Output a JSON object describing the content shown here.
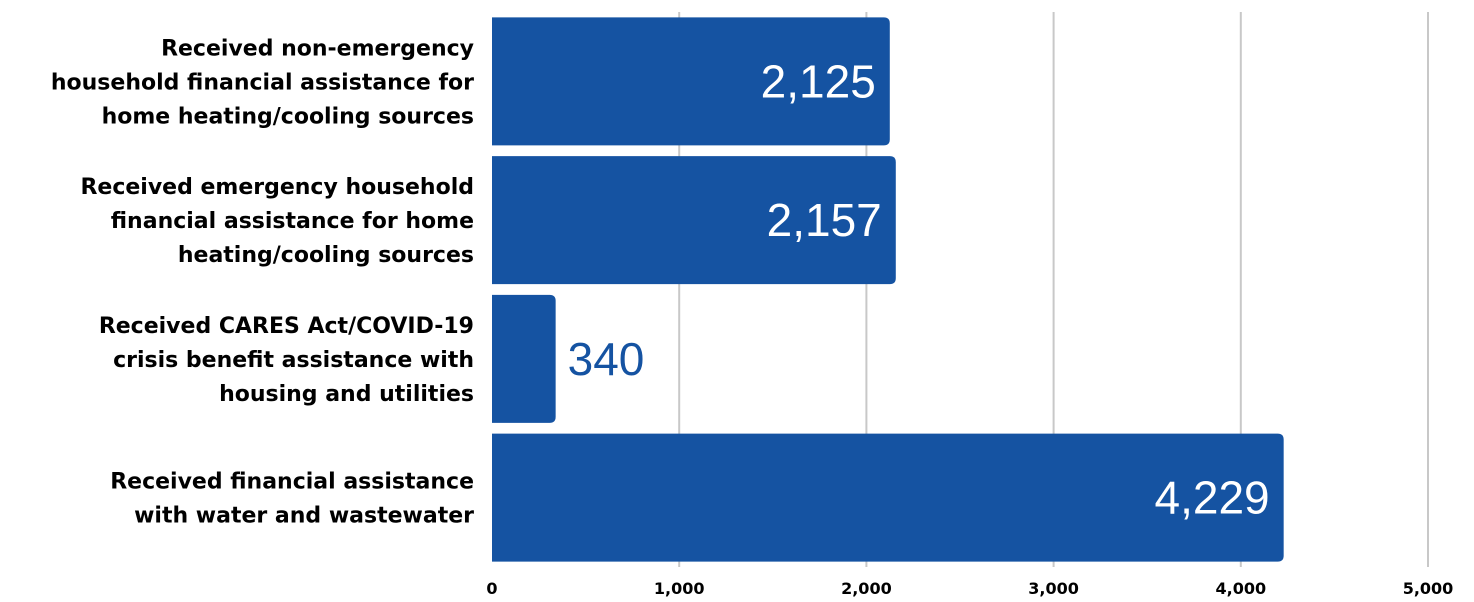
{
  "chart_data": {
    "type": "bar",
    "orientation": "horizontal",
    "categories": [
      [
        "Received non-emergency",
        "household financial assistance for",
        "home heating/cooling sources"
      ],
      [
        "Received emergency household",
        "financial assistance for home",
        "heating/cooling sources"
      ],
      [
        "Received CARES Act/COVID-19",
        "crisis benefit assistance with",
        "housing and utilities"
      ],
      [
        "Received financial assistance",
        "with water and wastewater"
      ]
    ],
    "values": [
      2125,
      2157,
      340,
      4229
    ],
    "value_labels": [
      "2,125",
      "2,157",
      "340",
      "4,229"
    ],
    "xlim": [
      0,
      5000
    ],
    "xticks": [
      0,
      1000,
      2000,
      3000,
      4000,
      5000
    ],
    "xtick_labels": [
      "0",
      "1,000",
      "2,000",
      "3,000",
      "4,000",
      "5,000"
    ],
    "title": "",
    "xlabel": "",
    "ylabel": "",
    "grid": "vertical",
    "legend": "none",
    "bar_color": "#1553a2",
    "grid_color": "#c8c8c8",
    "label_inside_color": "#ffffff",
    "label_outside_color": "#1553a2"
  }
}
